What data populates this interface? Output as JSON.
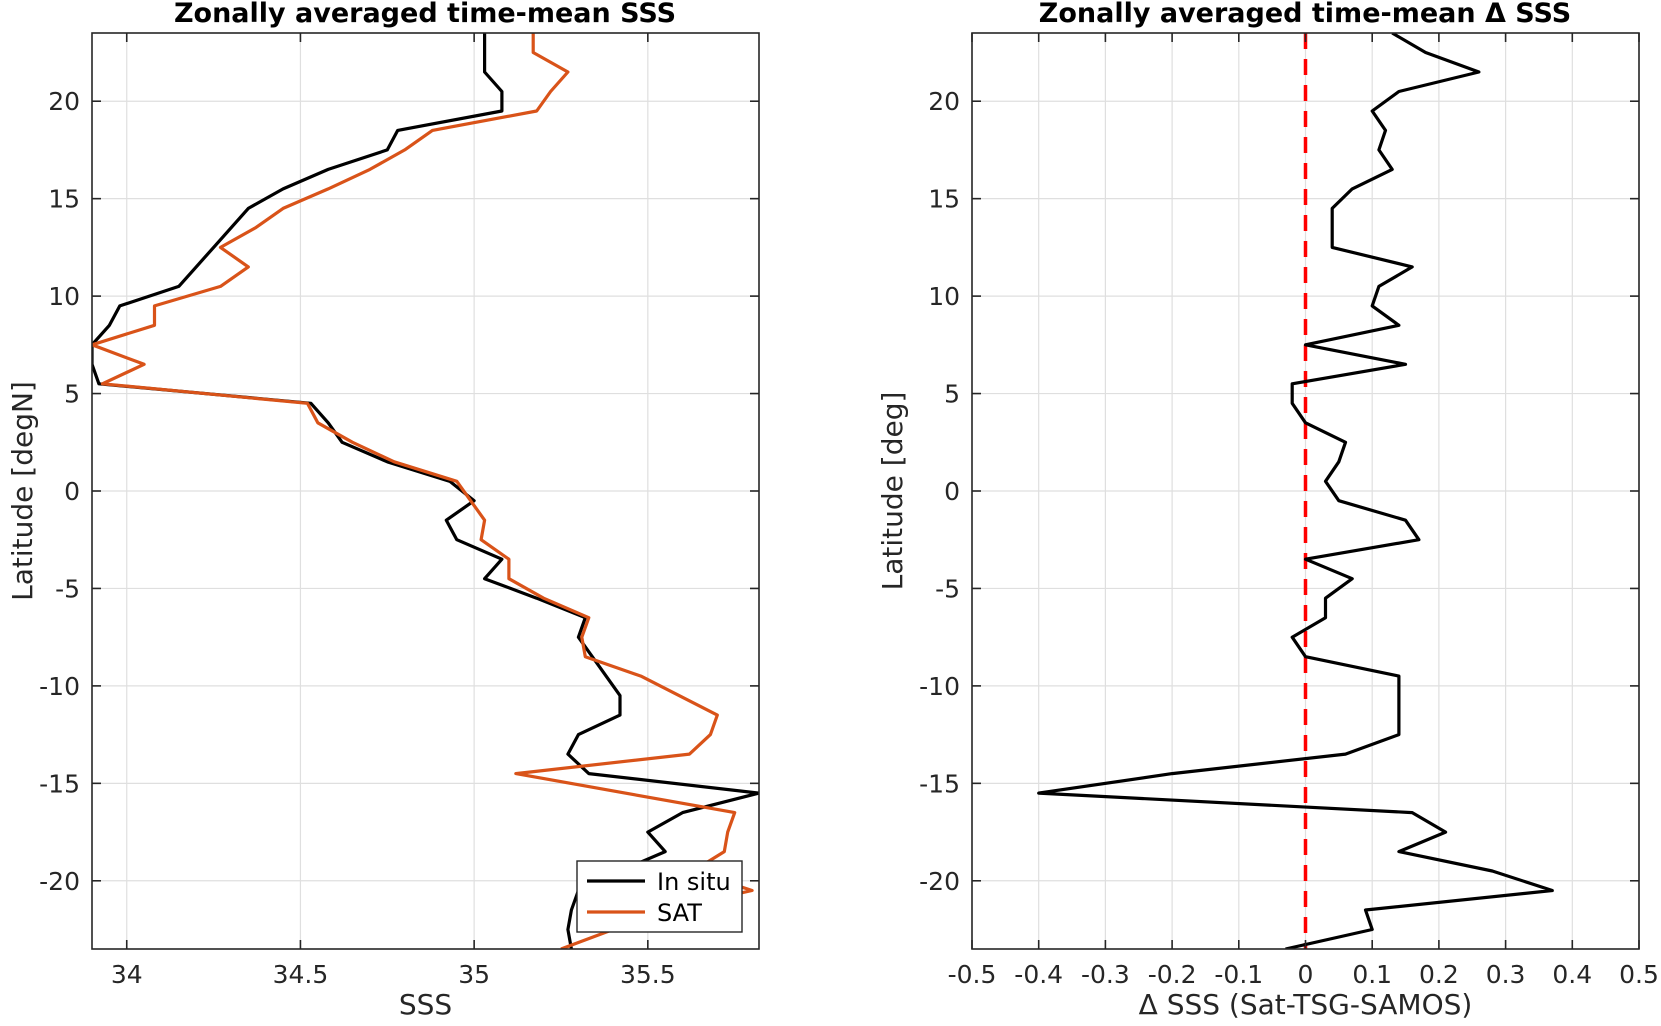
{
  "chart_data": [
    {
      "type": "line",
      "title": "Zonally averaged time-mean SSS",
      "xlabel": "SSS",
      "ylabel": "Latitude [degN]",
      "xlim": [
        33.9,
        35.82
      ],
      "ylim": [
        -23.5,
        23.5
      ],
      "xticks": [
        34,
        34.5,
        35,
        35.5
      ],
      "xtick_labels": [
        "34",
        "34.5",
        "35",
        "35.5"
      ],
      "yticks": [
        -20,
        -15,
        -10,
        -5,
        0,
        5,
        10,
        15,
        20
      ],
      "ytick_labels": [
        "-20",
        "-15",
        "-10",
        "-5",
        "0",
        "5",
        "10",
        "15",
        "20"
      ],
      "grid": true,
      "legend": {
        "location": "bottom-right",
        "entries": [
          "In situ",
          "SAT"
        ]
      },
      "series": [
        {
          "name": "In situ",
          "color": "#000000",
          "points": [
            [
              35.28,
              -23.5
            ],
            [
              35.27,
              -22.5
            ],
            [
              35.28,
              -21.5
            ],
            [
              35.3,
              -20.5
            ],
            [
              35.42,
              -19.5
            ],
            [
              35.55,
              -18.5
            ],
            [
              35.5,
              -17.5
            ],
            [
              35.6,
              -16.5
            ],
            [
              35.82,
              -15.5
            ],
            [
              35.33,
              -14.5
            ],
            [
              35.27,
              -13.5
            ],
            [
              35.3,
              -12.5
            ],
            [
              35.42,
              -11.5
            ],
            [
              35.42,
              -10.5
            ],
            [
              35.38,
              -9.5
            ],
            [
              35.3,
              -7.5
            ],
            [
              35.32,
              -6.5
            ],
            [
              35.18,
              -5.5
            ],
            [
              35.03,
              -4.5
            ],
            [
              35.08,
              -3.5
            ],
            [
              34.95,
              -2.5
            ],
            [
              34.92,
              -1.5
            ],
            [
              35.0,
              -0.5
            ],
            [
              34.93,
              0.5
            ],
            [
              34.75,
              1.5
            ],
            [
              34.62,
              2.5
            ],
            [
              34.58,
              3.5
            ],
            [
              34.53,
              4.5
            ],
            [
              33.92,
              5.5
            ],
            [
              33.9,
              6.5
            ],
            [
              33.9,
              7.5
            ],
            [
              33.95,
              8.5
            ],
            [
              33.98,
              9.5
            ],
            [
              34.15,
              10.5
            ],
            [
              34.2,
              11.5
            ],
            [
              34.25,
              12.5
            ],
            [
              34.35,
              14.5
            ],
            [
              34.45,
              15.5
            ],
            [
              34.58,
              16.5
            ],
            [
              34.75,
              17.5
            ],
            [
              34.78,
              18.5
            ],
            [
              35.08,
              19.5
            ],
            [
              35.08,
              20.5
            ],
            [
              35.03,
              21.5
            ],
            [
              35.03,
              22.5
            ],
            [
              35.03,
              23.5
            ]
          ]
        },
        {
          "name": "SAT",
          "color": "#d95319",
          "points": [
            [
              35.25,
              -23.5
            ],
            [
              35.4,
              -22.5
            ],
            [
              35.55,
              -21.5
            ],
            [
              35.8,
              -20.5
            ],
            [
              35.63,
              -19.5
            ],
            [
              35.72,
              -18.5
            ],
            [
              35.73,
              -17.5
            ],
            [
              35.75,
              -16.5
            ],
            [
              35.12,
              -14.5
            ],
            [
              35.62,
              -13.5
            ],
            [
              35.68,
              -12.5
            ],
            [
              35.7,
              -11.5
            ],
            [
              35.48,
              -9.5
            ],
            [
              35.32,
              -8.5
            ],
            [
              35.31,
              -7.5
            ],
            [
              35.33,
              -6.5
            ],
            [
              35.2,
              -5.5
            ],
            [
              35.1,
              -4.5
            ],
            [
              35.1,
              -3.5
            ],
            [
              35.02,
              -2.5
            ],
            [
              35.03,
              -1.5
            ],
            [
              34.95,
              0.5
            ],
            [
              34.77,
              1.5
            ],
            [
              34.65,
              2.5
            ],
            [
              34.55,
              3.5
            ],
            [
              34.52,
              4.5
            ],
            [
              33.93,
              5.5
            ],
            [
              34.05,
              6.5
            ],
            [
              33.9,
              7.5
            ],
            [
              34.08,
              8.5
            ],
            [
              34.08,
              9.5
            ],
            [
              34.27,
              10.5
            ],
            [
              34.35,
              11.5
            ],
            [
              34.27,
              12.5
            ],
            [
              34.37,
              13.5
            ],
            [
              34.45,
              14.5
            ],
            [
              34.58,
              15.5
            ],
            [
              34.7,
              16.5
            ],
            [
              34.8,
              17.5
            ],
            [
              34.88,
              18.5
            ],
            [
              35.18,
              19.5
            ],
            [
              35.22,
              20.5
            ],
            [
              35.27,
              21.5
            ],
            [
              35.17,
              22.5
            ],
            [
              35.17,
              23.5
            ]
          ]
        }
      ]
    },
    {
      "type": "line",
      "title": "Zonally averaged time-mean Δ SSS",
      "xlabel": "Δ SSS (Sat-TSG-SAMOS)",
      "ylabel": "Latitude [deg]",
      "xlim": [
        -0.5,
        0.5
      ],
      "ylim": [
        -23.5,
        23.5
      ],
      "xticks": [
        -0.5,
        -0.4,
        -0.3,
        -0.2,
        -0.1,
        0,
        0.1,
        0.2,
        0.3,
        0.4,
        0.5
      ],
      "xtick_labels": [
        "-0.5",
        "-0.4",
        "-0.3",
        "-0.2",
        "-0.1",
        "0",
        "0.1",
        "0.2",
        "0.3",
        "0.4",
        "0.5"
      ],
      "yticks": [
        -20,
        -15,
        -10,
        -5,
        0,
        5,
        10,
        15,
        20
      ],
      "ytick_labels": [
        "-20",
        "-15",
        "-10",
        "-5",
        "0",
        "5",
        "10",
        "15",
        "20"
      ],
      "grid": true,
      "reference_line": {
        "x": 0,
        "color": "#ff0000",
        "style": "dashed"
      },
      "series": [
        {
          "color": "#000000",
          "points": [
            [
              -0.03,
              -23.5
            ],
            [
              0.1,
              -22.5
            ],
            [
              0.09,
              -21.5
            ],
            [
              0.37,
              -20.5
            ],
            [
              0.28,
              -19.5
            ],
            [
              0.14,
              -18.5
            ],
            [
              0.21,
              -17.5
            ],
            [
              0.16,
              -16.5
            ],
            [
              -0.4,
              -15.5
            ],
            [
              -0.2,
              -14.5
            ],
            [
              0.06,
              -13.5
            ],
            [
              0.14,
              -12.5
            ],
            [
              0.14,
              -10.5
            ],
            [
              0.14,
              -9.5
            ],
            [
              0.0,
              -8.5
            ],
            [
              -0.02,
              -7.5
            ],
            [
              0.03,
              -6.5
            ],
            [
              0.03,
              -5.5
            ],
            [
              0.07,
              -4.5
            ],
            [
              0.0,
              -3.5
            ],
            [
              0.17,
              -2.5
            ],
            [
              0.15,
              -1.5
            ],
            [
              0.05,
              -0.5
            ],
            [
              0.03,
              0.5
            ],
            [
              0.05,
              1.5
            ],
            [
              0.06,
              2.5
            ],
            [
              0.0,
              3.5
            ],
            [
              -0.02,
              4.5
            ],
            [
              -0.02,
              5.5
            ],
            [
              0.15,
              6.5
            ],
            [
              0.0,
              7.5
            ],
            [
              0.14,
              8.5
            ],
            [
              0.1,
              9.5
            ],
            [
              0.11,
              10.5
            ],
            [
              0.16,
              11.5
            ],
            [
              0.04,
              12.5
            ],
            [
              0.04,
              14.5
            ],
            [
              0.07,
              15.5
            ],
            [
              0.13,
              16.5
            ],
            [
              0.11,
              17.5
            ],
            [
              0.12,
              18.5
            ],
            [
              0.1,
              19.5
            ],
            [
              0.14,
              20.5
            ],
            [
              0.26,
              21.5
            ],
            [
              0.18,
              22.5
            ],
            [
              0.13,
              23.5
            ]
          ]
        }
      ]
    }
  ]
}
